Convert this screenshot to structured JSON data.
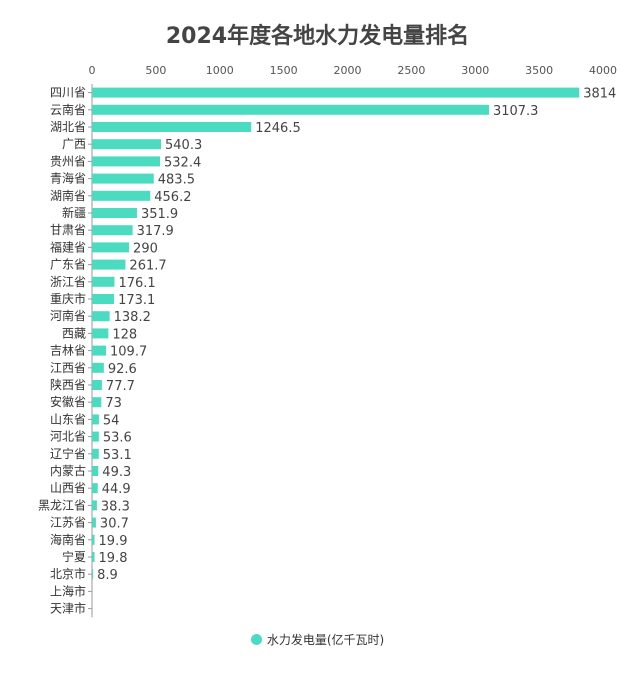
{
  "chart_data": {
    "type": "bar",
    "orientation": "horizontal",
    "title": "2024年度各地水力发电量排名",
    "categories": [
      "四川省",
      "云南省",
      "湖北省",
      "广西",
      "贵州省",
      "青海省",
      "湖南省",
      "新疆",
      "甘肃省",
      "福建省",
      "广东省",
      "浙江省",
      "重庆市",
      "河南省",
      "西藏",
      "吉林省",
      "江西省",
      "陕西省",
      "安徽省",
      "山东省",
      "河北省",
      "辽宁省",
      "内蒙古",
      "山西省",
      "黑龙江省",
      "江苏省",
      "海南省",
      "宁夏",
      "北京市",
      "上海市",
      "天津市"
    ],
    "series": [
      {
        "name": "水力发电量(亿千瓦时)",
        "color": "#4ADBC0",
        "values": [
          3814,
          3107.3,
          1246.5,
          540.3,
          532.4,
          483.5,
          456.2,
          351.9,
          317.9,
          290,
          261.7,
          176.1,
          173.1,
          138.2,
          128,
          109.7,
          92.6,
          77.7,
          73,
          54,
          53.6,
          53.1,
          49.3,
          44.9,
          38.3,
          30.7,
          19.9,
          19.8,
          8.9,
          null,
          null
        ]
      }
    ],
    "xlim": [
      0,
      4000
    ],
    "xticks": [
      0,
      500,
      1000,
      1500,
      2000,
      2500,
      3000,
      3500,
      4000
    ],
    "legend_position": "bottom",
    "grid": false
  }
}
